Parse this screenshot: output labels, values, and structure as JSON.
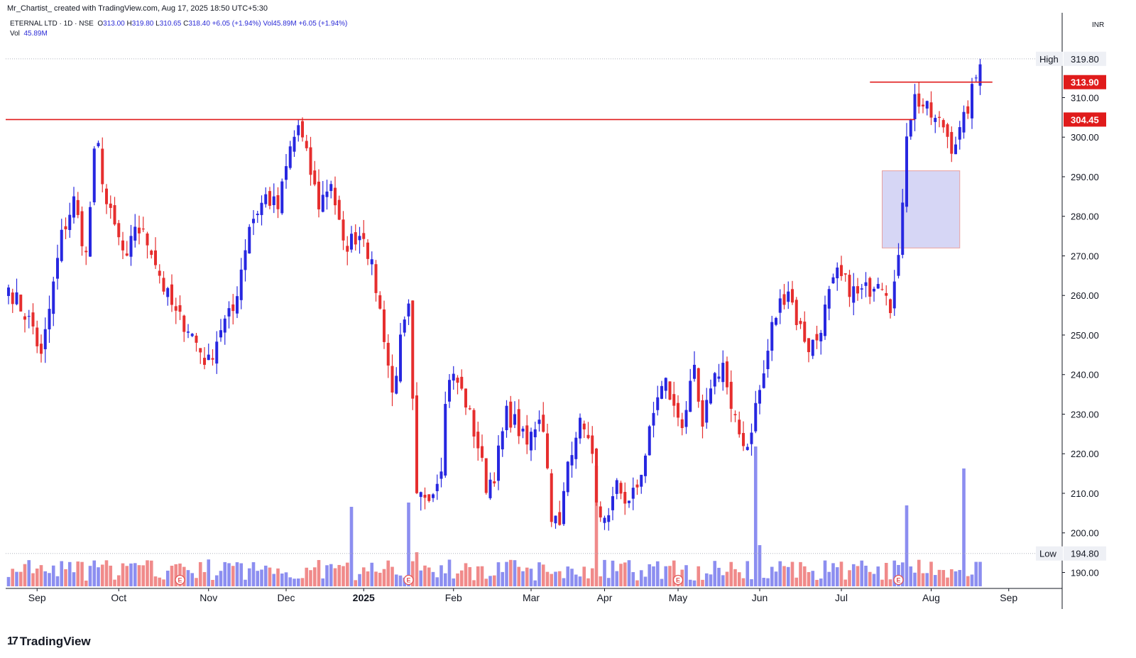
{
  "header": {
    "attribution": "Mr_Chartist_ created with TradingView.com, Aug 17, 2025 18:50 UTC+5:30",
    "symbol_line": "ETERNAL LTD · 1D · NSE",
    "ohlc": {
      "open_label": "O",
      "open": "313.00",
      "high_label": "H",
      "high": "319.80",
      "low_label": "L",
      "low": "310.65",
      "close_label": "C",
      "close": "318.40",
      "change": "+6.05 (+1.94%)"
    },
    "vol_label": "Vol",
    "vol_value": "45.89M",
    "vol_inline": "Vol45.89M",
    "vol_change": "+6.05 (+1.94%)"
  },
  "currency": "INR",
  "footer": {
    "brand": "TradingView",
    "brand_mark": "17"
  },
  "colors": {
    "up": "#2727e0",
    "down": "#e62e2e",
    "up_vol": "#8c8ef0",
    "down_vol": "#f08a8a",
    "level": "#e01b1b",
    "zone": "#d6d6f5",
    "grid": "#b0b3bd"
  },
  "chart_data": {
    "type": "candlestick",
    "ylim": [
      186.5,
      323
    ],
    "yticks": [
      190,
      200,
      210,
      220,
      230,
      240,
      250,
      260,
      270,
      280,
      290,
      300,
      310
    ],
    "ytick_labels": [
      "190.00",
      "200.00",
      "210.00",
      "220.00",
      "230.00",
      "240.00",
      "250.00",
      "260.00",
      "270.00",
      "280.00",
      "290.00",
      "300.00",
      "310.00"
    ],
    "x_labels": [
      {
        "label": "Sep",
        "bar": 7
      },
      {
        "label": "Oct",
        "bar": 27
      },
      {
        "label": "Nov",
        "bar": 49
      },
      {
        "label": "Dec",
        "bar": 68
      },
      {
        "label": "2025",
        "bar": 87
      },
      {
        "label": "Feb",
        "bar": 109
      },
      {
        "label": "Mar",
        "bar": 128
      },
      {
        "label": "Apr",
        "bar": 146
      },
      {
        "label": "May",
        "bar": 164
      },
      {
        "label": "Jun",
        "bar": 184
      },
      {
        "label": "Jul",
        "bar": 204
      },
      {
        "label": "Aug",
        "bar": 226
      },
      {
        "label": "Sep",
        "bar": 245
      }
    ],
    "price_labels": [
      {
        "kind": "high",
        "tag": "High",
        "value": "319.80",
        "y": 319.8
      },
      {
        "kind": "level",
        "tag": "",
        "value": "313.90",
        "y": 313.9
      },
      {
        "kind": "level",
        "tag": "",
        "value": "304.45",
        "y": 304.45
      },
      {
        "kind": "low",
        "tag": "Low",
        "value": "194.80",
        "y": 194.8
      }
    ],
    "horizontal_lines": [
      {
        "y": 304.45,
        "from_bar": 0,
        "to_bar": 222
      },
      {
        "y": 313.9,
        "from_bar": 211,
        "to_bar": 241
      }
    ],
    "zone": {
      "from_bar": 214,
      "to_bar": 233,
      "y_low": 272,
      "y_high": 291.5
    },
    "earnings_bars": [
      42,
      98,
      164,
      218
    ],
    "anchors": [
      [
        0,
        262
      ],
      [
        6,
        252
      ],
      [
        8,
        244
      ],
      [
        13,
        275
      ],
      [
        16,
        284
      ],
      [
        19,
        270
      ],
      [
        21,
        295
      ],
      [
        22,
        297
      ],
      [
        24,
        283
      ],
      [
        29,
        268
      ],
      [
        31,
        278
      ],
      [
        35,
        272
      ],
      [
        38,
        262
      ],
      [
        41,
        255
      ],
      [
        44,
        252
      ],
      [
        48,
        244
      ],
      [
        49,
        243
      ],
      [
        52,
        252
      ],
      [
        55,
        256
      ],
      [
        59,
        278
      ],
      [
        63,
        285
      ],
      [
        66,
        282
      ],
      [
        69,
        297
      ],
      [
        71,
        303
      ],
      [
        73,
        295
      ],
      [
        76,
        283
      ],
      [
        79,
        289
      ],
      [
        82,
        272
      ],
      [
        85,
        275
      ],
      [
        87,
        276
      ],
      [
        90,
        262
      ],
      [
        92,
        250
      ],
      [
        94,
        235
      ],
      [
        96,
        248
      ],
      [
        98,
        256
      ],
      [
        100,
        208
      ],
      [
        102,
        210
      ],
      [
        104,
        211
      ],
      [
        106,
        218
      ],
      [
        107,
        232
      ],
      [
        108,
        240
      ],
      [
        110,
        238
      ],
      [
        112,
        233
      ],
      [
        115,
        222
      ],
      [
        117,
        212
      ],
      [
        119,
        215
      ],
      [
        122,
        230
      ],
      [
        124,
        228
      ],
      [
        127,
        222
      ],
      [
        130,
        230
      ],
      [
        131,
        227
      ],
      [
        133,
        205
      ],
      [
        135,
        201
      ],
      [
        137,
        218
      ],
      [
        139,
        226
      ],
      [
        141,
        228
      ],
      [
        143,
        218
      ],
      [
        145,
        202
      ],
      [
        147,
        202
      ],
      [
        149,
        212
      ],
      [
        152,
        207
      ],
      [
        154,
        212
      ],
      [
        156,
        220
      ],
      [
        158,
        230
      ],
      [
        159,
        235
      ],
      [
        161,
        238
      ],
      [
        163,
        231
      ],
      [
        165,
        228
      ],
      [
        168,
        240
      ],
      [
        170,
        225
      ],
      [
        172,
        238
      ],
      [
        175,
        243
      ],
      [
        177,
        230
      ],
      [
        179,
        225
      ],
      [
        181,
        222
      ],
      [
        183,
        232
      ],
      [
        185,
        240
      ],
      [
        187,
        252
      ],
      [
        189,
        258
      ],
      [
        191,
        262
      ],
      [
        193,
        254
      ],
      [
        196,
        247
      ],
      [
        198,
        249
      ],
      [
        201,
        260
      ],
      [
        203,
        265
      ],
      [
        206,
        262
      ],
      [
        208,
        260
      ],
      [
        211,
        262
      ],
      [
        213,
        265
      ],
      [
        215,
        262
      ],
      [
        216,
        258
      ],
      [
        218,
        268
      ],
      [
        220,
        302
      ],
      [
        222,
        310
      ],
      [
        224,
        308
      ],
      [
        227,
        304
      ],
      [
        229,
        303
      ],
      [
        231,
        298
      ],
      [
        233,
        301
      ],
      [
        234,
        304
      ],
      [
        237,
        315
      ],
      [
        238,
        318.4
      ]
    ]
  }
}
